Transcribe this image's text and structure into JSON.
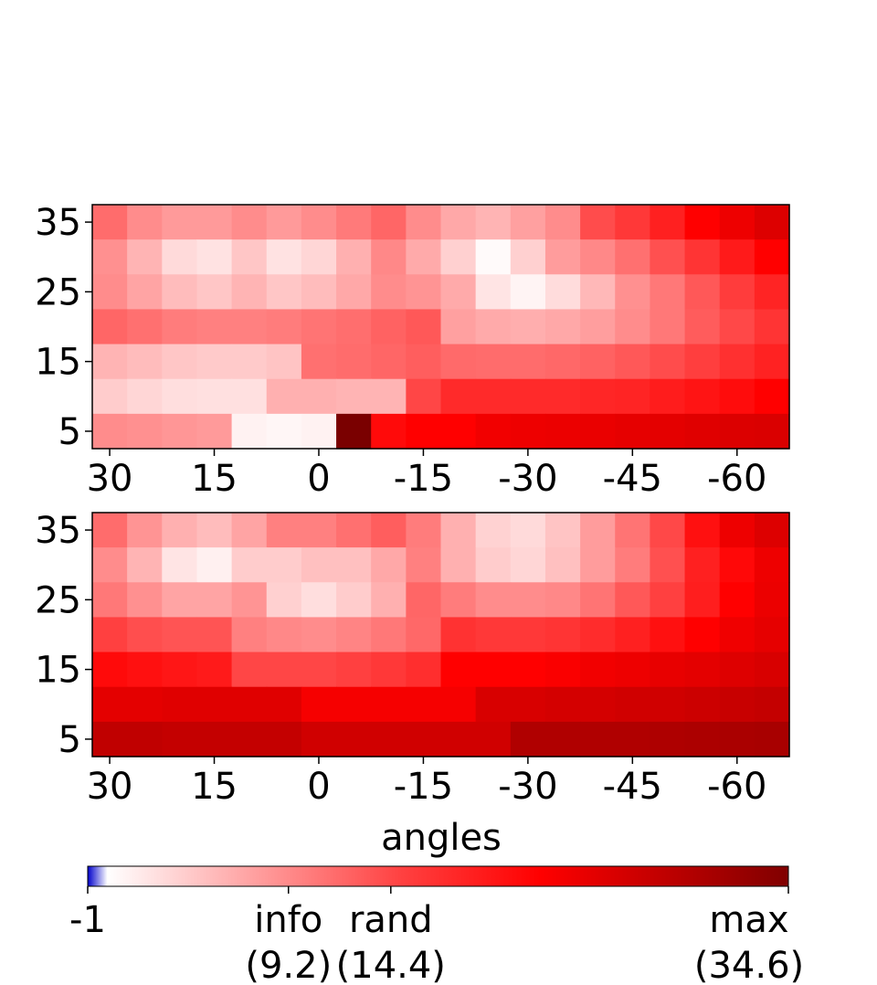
{
  "chart_data": [
    {
      "type": "heatmap",
      "panel": "top",
      "x_centers": [
        30,
        25,
        20,
        15,
        10,
        5,
        0,
        -5,
        -10,
        -15,
        -20,
        -25,
        -30,
        -35,
        -40,
        -45,
        -50,
        -55,
        -60,
        -65
      ],
      "y_centers": [
        35,
        30,
        25,
        20,
        15,
        10,
        5
      ],
      "xticks": [
        "30",
        "15",
        "0",
        "-15",
        "-30",
        "-45",
        "-60"
      ],
      "yticks": [
        "35",
        "25",
        "15",
        "5"
      ],
      "xlabel": "",
      "ylabel": "",
      "colors": [
        [
          "#ff6c6c",
          "#ff8c8c",
          "#ff9a9a",
          "#ff9a9a",
          "#ff8c8c",
          "#ff9a9a",
          "#ff8c8c",
          "#ff7a7a",
          "#ff6666",
          "#ff8c8c",
          "#ffa8a8",
          "#ffb4b4",
          "#ffa0a0",
          "#ff8c8c",
          "#ff4c4c",
          "#ff3838",
          "#ff2020",
          "#ff0000",
          "#ee0000",
          "#dd0000"
        ],
        [
          "#ff9090",
          "#ffb4b4",
          "#ffdada",
          "#ffe2e2",
          "#ffc6c6",
          "#ffe2e2",
          "#ffd6d6",
          "#ffb0b0",
          "#ff8888",
          "#ffaaaa",
          "#ffd0d0",
          "#fffafa",
          "#ffd0d0",
          "#ff9c9c",
          "#ff8888",
          "#ff7070",
          "#ff5050",
          "#ff3434",
          "#ff1a1a",
          "#ff0000"
        ],
        [
          "#ff8c8c",
          "#ffa4a4",
          "#ffbcbc",
          "#ffc6c6",
          "#ffb4b4",
          "#ffc6c6",
          "#ffbcbc",
          "#ffa8a8",
          "#ff8c8c",
          "#ff9494",
          "#ffaaaa",
          "#ffe4e4",
          "#fff4f4",
          "#ffdcdc",
          "#ffb8b8",
          "#ff9090",
          "#ff7878",
          "#ff5858",
          "#ff3c3c",
          "#ff2424"
        ],
        [
          "#ff6666",
          "#ff7070",
          "#ff7c7c",
          "#ff8080",
          "#ff8080",
          "#ff7c7c",
          "#ff7474",
          "#ff6e6e",
          "#ff6262",
          "#ff5858",
          "#ffa0a0",
          "#ffaaaa",
          "#ffaeae",
          "#ffa8a8",
          "#ff9e9e",
          "#ff8c8c",
          "#ff7878",
          "#ff5c5c",
          "#ff4848",
          "#ff3434"
        ],
        [
          "#ffb4b4",
          "#ffbcbc",
          "#ffc6c6",
          "#ffcaca",
          "#ffcaca",
          "#ffc4c4",
          "#ff7070",
          "#ff6c6c",
          "#ff6666",
          "#ff5e5e",
          "#ff6a6a",
          "#ff6c6c",
          "#ff6c6c",
          "#ff6868",
          "#ff6262",
          "#ff5858",
          "#ff4c4c",
          "#ff3e3e",
          "#ff3030",
          "#ff2222"
        ],
        [
          "#ffcccc",
          "#ffd6d6",
          "#ffdede",
          "#ffe0e0",
          "#ffe0e0",
          "#ffb0b0",
          "#ffb0b0",
          "#ffb4b4",
          "#ffb4b4",
          "#ff4646",
          "#ff2a2a",
          "#ff2a2a",
          "#ff2a2a",
          "#ff2a2a",
          "#ff2626",
          "#ff2424",
          "#ff1c1c",
          "#ff1414",
          "#ff0c0c",
          "#ff0000"
        ],
        [
          "#ff8c8c",
          "#ff9090",
          "#ff9696",
          "#ff9a9a",
          "#fff2f2",
          "#fff6f6",
          "#fff2f2",
          "#7a0000",
          "#ff0a0a",
          "#ff0000",
          "#ff0000",
          "#f20000",
          "#ee0000",
          "#ec0000",
          "#ea0000",
          "#e60000",
          "#e40000",
          "#e00000",
          "#dc0000",
          "#da0000"
        ]
      ]
    },
    {
      "type": "heatmap",
      "panel": "bottom",
      "x_centers": [
        30,
        25,
        20,
        15,
        10,
        5,
        0,
        -5,
        -10,
        -15,
        -20,
        -25,
        -30,
        -35,
        -40,
        -45,
        -50,
        -55,
        -60,
        -65
      ],
      "y_centers": [
        35,
        30,
        25,
        20,
        15,
        10,
        5
      ],
      "xticks": [
        "30",
        "15",
        "0",
        "-15",
        "-30",
        "-45",
        "-60"
      ],
      "yticks": [
        "35",
        "25",
        "15",
        "5"
      ],
      "xlabel": "angles",
      "ylabel": "",
      "colors": [
        [
          "#ff6c6c",
          "#ff9494",
          "#ffb0b0",
          "#ffbcbc",
          "#ffa4a4",
          "#ff8080",
          "#ff8080",
          "#ff7070",
          "#ff5e5e",
          "#ff7c7c",
          "#ffb0b0",
          "#ffd2d2",
          "#ffdada",
          "#ffc4c4",
          "#ff9c9c",
          "#ff7474",
          "#ff4848",
          "#ff1010",
          "#ee0000",
          "#dd0000"
        ],
        [
          "#ff8c8c",
          "#ffb4b4",
          "#ffe4e4",
          "#fff0f0",
          "#ffcccc",
          "#ffcccc",
          "#ffc0c0",
          "#ffc0c0",
          "#ffa8a8",
          "#ff8080",
          "#ffb0b0",
          "#ffcccc",
          "#ffd6d6",
          "#ffc0c0",
          "#ff9c9c",
          "#ff7c7c",
          "#ff5050",
          "#ff2020",
          "#ff0808",
          "#ee0000"
        ],
        [
          "#ff7878",
          "#ff9090",
          "#ffa4a4",
          "#ffa4a4",
          "#ff9494",
          "#ffd0d0",
          "#ffdede",
          "#ffcccc",
          "#ffb0b0",
          "#ff6666",
          "#ff7c7c",
          "#ff8c8c",
          "#ff8c8c",
          "#ff8888",
          "#ff7474",
          "#ff5858",
          "#ff4040",
          "#ff1e1e",
          "#ff0000",
          "#ec0000"
        ],
        [
          "#ff4040",
          "#ff4e4e",
          "#ff5454",
          "#ff5454",
          "#ff8080",
          "#ff8888",
          "#ff8c8c",
          "#ff8484",
          "#ff7878",
          "#ff6868",
          "#ff3232",
          "#ff3838",
          "#ff3838",
          "#ff3434",
          "#ff2c2c",
          "#ff2020",
          "#ff1010",
          "#ff0000",
          "#f00000",
          "#e60000"
        ],
        [
          "#ff0a0a",
          "#ff1010",
          "#ff1616",
          "#ff1a1a",
          "#ff4646",
          "#ff4646",
          "#ff4646",
          "#ff4040",
          "#ff3838",
          "#ff2e2e",
          "#ff0000",
          "#ff0000",
          "#ff0000",
          "#fa0000",
          "#f20000",
          "#ee0000",
          "#e80000",
          "#e40000",
          "#de0000",
          "#d80000"
        ],
        [
          "#e40000",
          "#e40000",
          "#e00000",
          "#e00000",
          "#e00000",
          "#e00000",
          "#f60000",
          "#f60000",
          "#f60000",
          "#f60000",
          "#f60000",
          "#d80000",
          "#d80000",
          "#d40000",
          "#d40000",
          "#d00000",
          "#d00000",
          "#cc0000",
          "#c80000",
          "#c40000"
        ],
        [
          "#c00000",
          "#c00000",
          "#c40000",
          "#c40000",
          "#c40000",
          "#c40000",
          "#d00000",
          "#d00000",
          "#d00000",
          "#d00000",
          "#d00000",
          "#d00000",
          "#b00000",
          "#b00000",
          "#b00000",
          "#b00000",
          "#ae0000",
          "#ac0000",
          "#aa0000",
          "#a80000"
        ]
      ]
    }
  ],
  "colorbar": {
    "scale_min": -1,
    "scale_max": 34.6,
    "stops": [
      {
        "value": -1,
        "color": "#0000cc"
      },
      {
        "value": 0,
        "color": "#ffffff"
      },
      {
        "value": 15,
        "color": "#ff4040"
      },
      {
        "value": 22,
        "color": "#ff0000"
      },
      {
        "value": 34.6,
        "color": "#800000"
      }
    ],
    "ticks": [
      {
        "value": -1,
        "label": "-1",
        "sub": ""
      },
      {
        "value": 9.2,
        "label": "info",
        "sub": "(9.2)"
      },
      {
        "value": 14.4,
        "label": "rand",
        "sub": "(14.4)"
      },
      {
        "value": 34.6,
        "label": "max",
        "sub": "(34.6)"
      }
    ]
  }
}
